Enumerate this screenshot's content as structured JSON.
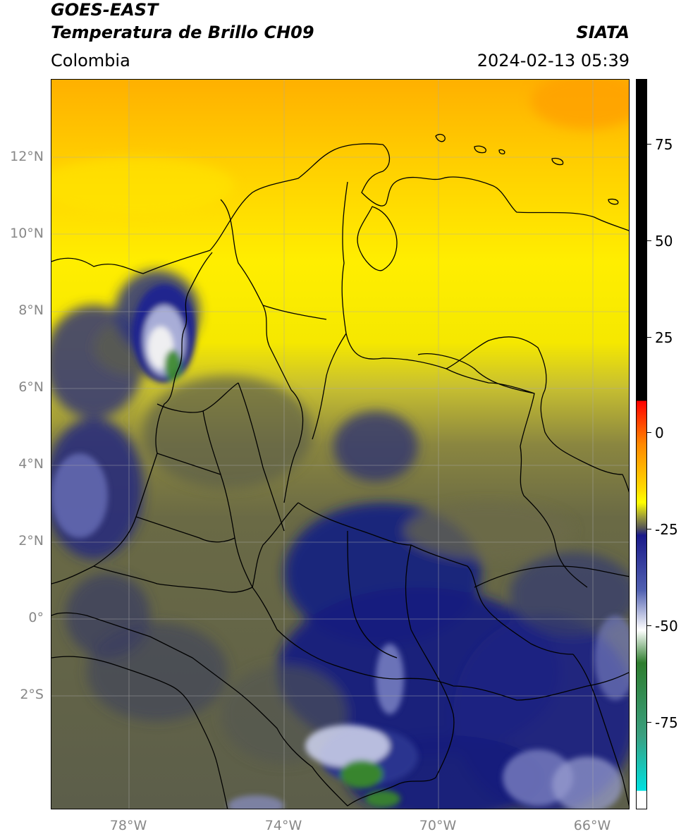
{
  "header": {
    "title_line1": "GOES-EAST",
    "title_line2": "Temperatura de Brillo CH09",
    "region": "Colombia",
    "brand": "SIATA",
    "timestamp": "2024-02-13 05:39"
  },
  "map": {
    "lat_labels": [
      "12°N",
      "10°N",
      "8°N",
      "6°N",
      "4°N",
      "2°N",
      "0°",
      "2°S"
    ],
    "lon_labels": [
      "78°W",
      "74°W",
      "70°W",
      "66°W"
    ],
    "colors": {
      "warm_orange": "#ffa500",
      "yellow": "#ffeb00",
      "olive": "#6b6b3a",
      "slate": "#4a4e62",
      "navy": "#101a80",
      "white": "#f2f2f2",
      "green": "#3a8a2a",
      "border_line": "#000000"
    }
  },
  "colorbar": {
    "labels": [
      "75",
      "50",
      "25",
      "0",
      "-25",
      "-50",
      "-75"
    ],
    "stops": [
      {
        "color": "#000000",
        "at": 0.0
      },
      {
        "color": "#000000",
        "at": 0.44
      },
      {
        "color": "#ff0000",
        "at": 0.441
      },
      {
        "color": "#ff8800",
        "at": 0.5
      },
      {
        "color": "#ffd800",
        "at": 0.56
      },
      {
        "color": "#ffff00",
        "at": 0.58
      },
      {
        "color": "#9a9a3a",
        "at": 0.6
      },
      {
        "color": "#555555",
        "at": 0.615
      },
      {
        "color": "#1a1a8a",
        "at": 0.625
      },
      {
        "color": "#5060b0",
        "at": 0.7
      },
      {
        "color": "#ffffff",
        "at": 0.755
      },
      {
        "color": "#2e7d2e",
        "at": 0.8
      },
      {
        "color": "#3aa080",
        "at": 0.9
      },
      {
        "color": "#00e0e0",
        "at": 0.975
      },
      {
        "color": "#ffffff",
        "at": 0.976
      },
      {
        "color": "#ffffff",
        "at": 1.0
      }
    ]
  }
}
